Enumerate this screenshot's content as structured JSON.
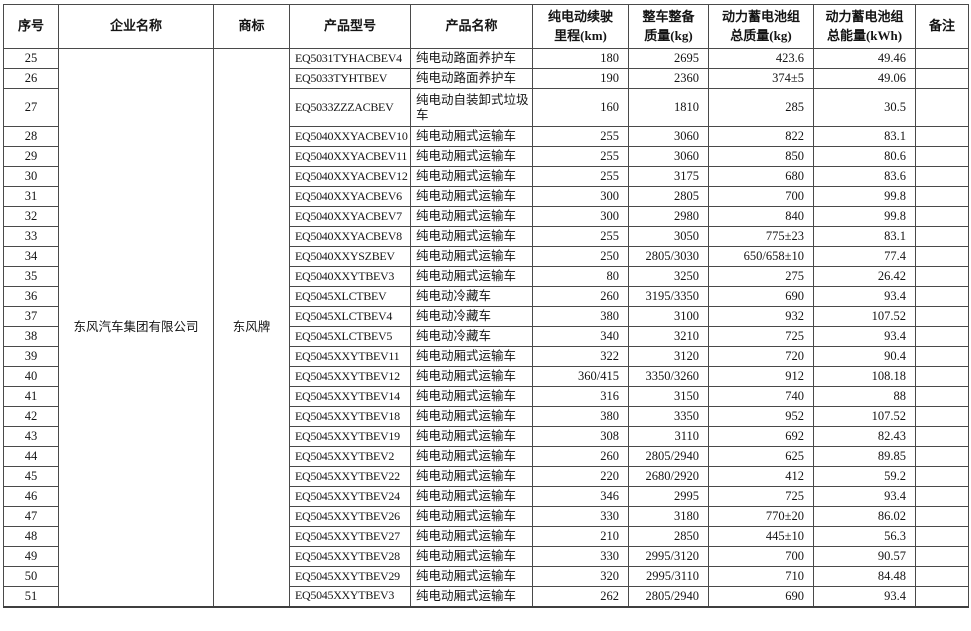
{
  "table": {
    "headers": [
      "序号",
      "企业名称",
      "商标",
      "产品型号",
      "产品名称",
      "纯电动续驶\n里程(km)",
      "整车整备\n质量(kg)",
      "动力蓄电池组\n总质量(kg)",
      "动力蓄电池组\n总能量(kWh)",
      "备注"
    ],
    "company": "东风汽车集团有限公司",
    "brand": "东风牌",
    "rows": [
      {
        "no": "25",
        "model": "EQ5031TYHACBEV4",
        "name": "纯电动路面养护车",
        "range": "180",
        "curb": "2695",
        "batt_mass": "423.6",
        "energy": "49.46",
        "remark": "",
        "tall": false
      },
      {
        "no": "26",
        "model": "EQ5033TYHTBEV",
        "name": "纯电动路面养护车",
        "range": "190",
        "curb": "2360",
        "batt_mass": "374±5",
        "energy": "49.06",
        "remark": "",
        "tall": false
      },
      {
        "no": "27",
        "model": "EQ5033ZZZACBEV",
        "name": "纯电动自装卸式垃圾车",
        "range": "160",
        "curb": "1810",
        "batt_mass": "285",
        "energy": "30.5",
        "remark": "",
        "tall": true
      },
      {
        "no": "28",
        "model": "EQ5040XXYACBEV10",
        "name": "纯电动厢式运输车",
        "range": "255",
        "curb": "3060",
        "batt_mass": "822",
        "energy": "83.1",
        "remark": "",
        "tall": false
      },
      {
        "no": "29",
        "model": "EQ5040XXYACBEV11",
        "name": "纯电动厢式运输车",
        "range": "255",
        "curb": "3060",
        "batt_mass": "850",
        "energy": "80.6",
        "remark": "",
        "tall": false
      },
      {
        "no": "30",
        "model": "EQ5040XXYACBEV12",
        "name": "纯电动厢式运输车",
        "range": "255",
        "curb": "3175",
        "batt_mass": "680",
        "energy": "83.6",
        "remark": "",
        "tall": false
      },
      {
        "no": "31",
        "model": "EQ5040XXYACBEV6",
        "name": "纯电动厢式运输车",
        "range": "300",
        "curb": "2805",
        "batt_mass": "700",
        "energy": "99.8",
        "remark": "",
        "tall": false
      },
      {
        "no": "32",
        "model": "EQ5040XXYACBEV7",
        "name": "纯电动厢式运输车",
        "range": "300",
        "curb": "2980",
        "batt_mass": "840",
        "energy": "99.8",
        "remark": "",
        "tall": false
      },
      {
        "no": "33",
        "model": "EQ5040XXYACBEV8",
        "name": "纯电动厢式运输车",
        "range": "255",
        "curb": "3050",
        "batt_mass": "775±23",
        "energy": "83.1",
        "remark": "",
        "tall": false
      },
      {
        "no": "34",
        "model": "EQ5040XXYSZBEV",
        "name": "纯电动厢式运输车",
        "range": "250",
        "curb": "2805/3030",
        "batt_mass": "650/658±10",
        "energy": "77.4",
        "remark": "",
        "tall": false
      },
      {
        "no": "35",
        "model": "EQ5040XXYTBEV3",
        "name": "纯电动厢式运输车",
        "range": "80",
        "curb": "3250",
        "batt_mass": "275",
        "energy": "26.42",
        "remark": "",
        "tall": false
      },
      {
        "no": "36",
        "model": "EQ5045XLCTBEV",
        "name": "纯电动冷藏车",
        "range": "260",
        "curb": "3195/3350",
        "batt_mass": "690",
        "energy": "93.4",
        "remark": "",
        "tall": false
      },
      {
        "no": "37",
        "model": "EQ5045XLCTBEV4",
        "name": "纯电动冷藏车",
        "range": "380",
        "curb": "3100",
        "batt_mass": "932",
        "energy": "107.52",
        "remark": "",
        "tall": false
      },
      {
        "no": "38",
        "model": "EQ5045XLCTBEV5",
        "name": "纯电动冷藏车",
        "range": "340",
        "curb": "3210",
        "batt_mass": "725",
        "energy": "93.4",
        "remark": "",
        "tall": false
      },
      {
        "no": "39",
        "model": "EQ5045XXYTBEV11",
        "name": "纯电动厢式运输车",
        "range": "322",
        "curb": "3120",
        "batt_mass": "720",
        "energy": "90.4",
        "remark": "",
        "tall": false
      },
      {
        "no": "40",
        "model": "EQ5045XXYTBEV12",
        "name": "纯电动厢式运输车",
        "range": "360/415",
        "curb": "3350/3260",
        "batt_mass": "912",
        "energy": "108.18",
        "remark": "",
        "tall": false
      },
      {
        "no": "41",
        "model": "EQ5045XXYTBEV14",
        "name": "纯电动厢式运输车",
        "range": "316",
        "curb": "3150",
        "batt_mass": "740",
        "energy": "88",
        "remark": "",
        "tall": false
      },
      {
        "no": "42",
        "model": "EQ5045XXYTBEV18",
        "name": "纯电动厢式运输车",
        "range": "380",
        "curb": "3350",
        "batt_mass": "952",
        "energy": "107.52",
        "remark": "",
        "tall": false
      },
      {
        "no": "43",
        "model": "EQ5045XXYTBEV19",
        "name": "纯电动厢式运输车",
        "range": "308",
        "curb": "3110",
        "batt_mass": "692",
        "energy": "82.43",
        "remark": "",
        "tall": false
      },
      {
        "no": "44",
        "model": "EQ5045XXYTBEV2",
        "name": "纯电动厢式运输车",
        "range": "260",
        "curb": "2805/2940",
        "batt_mass": "625",
        "energy": "89.85",
        "remark": "",
        "tall": false
      },
      {
        "no": "45",
        "model": "EQ5045XXYTBEV22",
        "name": "纯电动厢式运输车",
        "range": "220",
        "curb": "2680/2920",
        "batt_mass": "412",
        "energy": "59.2",
        "remark": "",
        "tall": false
      },
      {
        "no": "46",
        "model": "EQ5045XXYTBEV24",
        "name": "纯电动厢式运输车",
        "range": "346",
        "curb": "2995",
        "batt_mass": "725",
        "energy": "93.4",
        "remark": "",
        "tall": false
      },
      {
        "no": "47",
        "model": "EQ5045XXYTBEV26",
        "name": "纯电动厢式运输车",
        "range": "330",
        "curb": "3180",
        "batt_mass": "770±20",
        "energy": "86.02",
        "remark": "",
        "tall": false
      },
      {
        "no": "48",
        "model": "EQ5045XXYTBEV27",
        "name": "纯电动厢式运输车",
        "range": "210",
        "curb": "2850",
        "batt_mass": "445±10",
        "energy": "56.3",
        "remark": "",
        "tall": false
      },
      {
        "no": "49",
        "model": "EQ5045XXYTBEV28",
        "name": "纯电动厢式运输车",
        "range": "330",
        "curb": "2995/3120",
        "batt_mass": "700",
        "energy": "90.57",
        "remark": "",
        "tall": false
      },
      {
        "no": "50",
        "model": "EQ5045XXYTBEV29",
        "name": "纯电动厢式运输车",
        "range": "320",
        "curb": "2995/3110",
        "batt_mass": "710",
        "energy": "84.48",
        "remark": "",
        "tall": false
      },
      {
        "no": "51",
        "model": "EQ5045XXYTBEV3",
        "name": "纯电动厢式运输车",
        "range": "262",
        "curb": "2805/2940",
        "batt_mass": "690",
        "energy": "93.4",
        "remark": "",
        "tall": false
      }
    ]
  }
}
